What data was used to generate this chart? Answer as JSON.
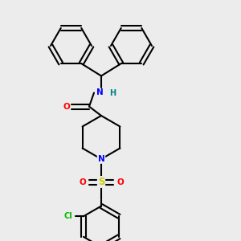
{
  "background_color": "#ececec",
  "bond_color": "#000000",
  "atom_colors": {
    "N": "#0000ff",
    "O": "#ff0000",
    "S": "#cccc00",
    "Cl": "#00bb00",
    "H": "#008080",
    "C": "#000000"
  },
  "figsize": [
    3.0,
    3.0
  ],
  "dpi": 100
}
